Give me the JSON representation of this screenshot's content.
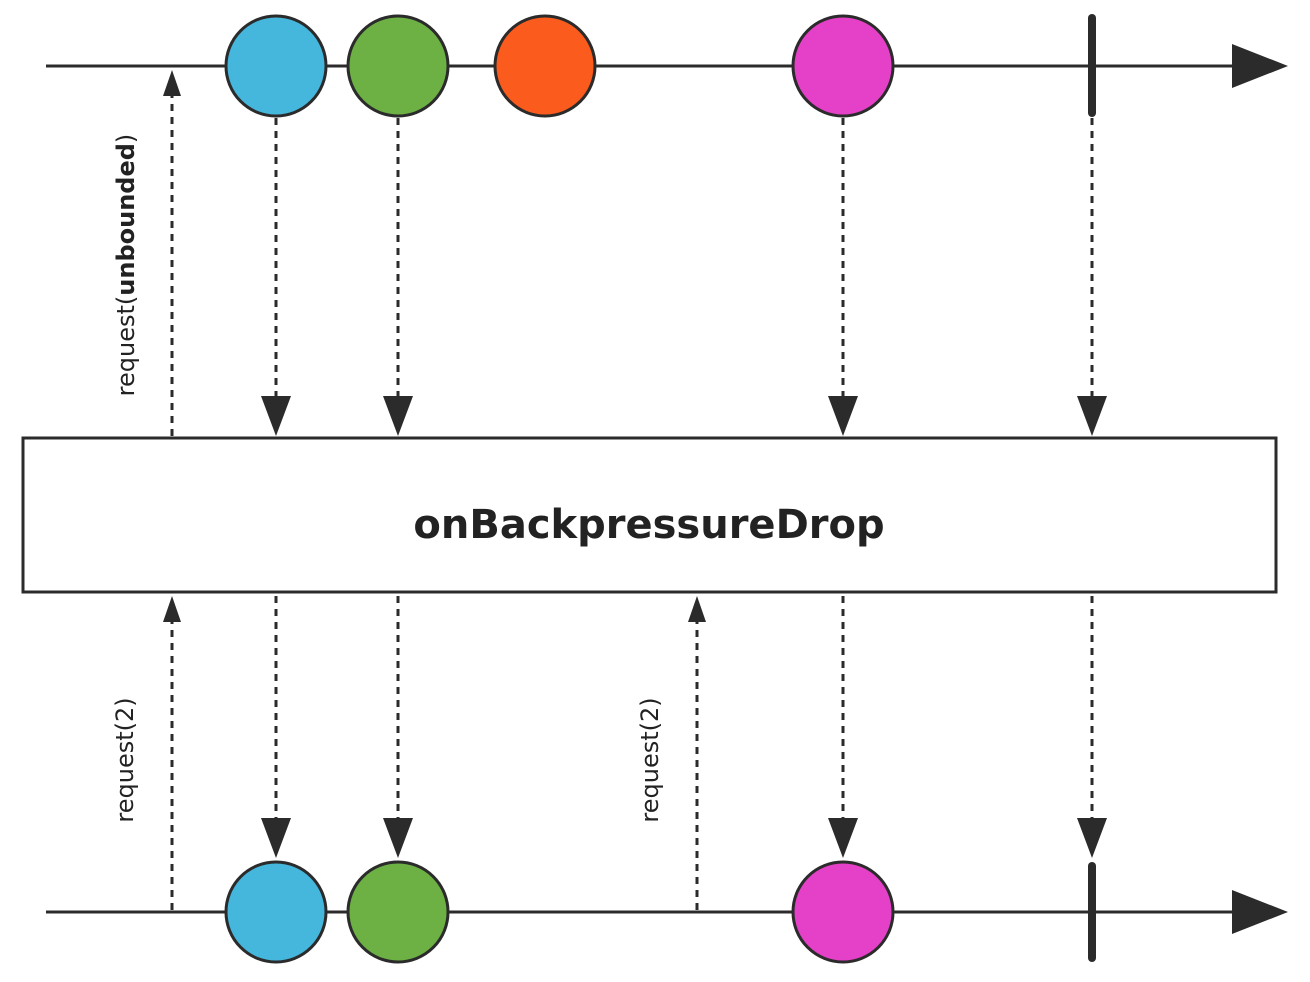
{
  "operator": {
    "label": "onBackpressureDrop"
  },
  "requests": {
    "upstream": {
      "prefix": "request(",
      "value": "unbounded",
      "suffix": ")"
    },
    "downstream_first": "request(2)",
    "downstream_second": "request(2)"
  },
  "colors": {
    "blue": "#45b6dc",
    "green": "#6db145",
    "orange": "#fb5b1c",
    "magenta": "#e540c8",
    "line": "#2b2b2b"
  },
  "source_marbles": [
    "blue",
    "green",
    "orange",
    "magenta"
  ],
  "emitted_marbles": [
    "blue",
    "green",
    "magenta"
  ],
  "dropped_marbles": [
    "orange"
  ]
}
